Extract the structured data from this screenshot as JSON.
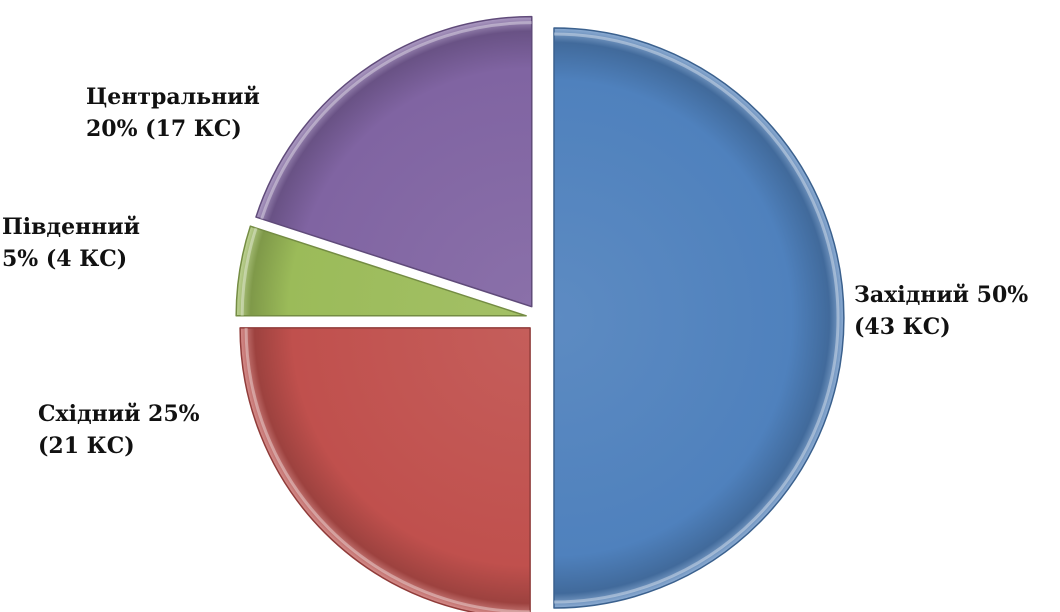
{
  "chart_data": {
    "type": "pie",
    "title": "",
    "slices": [
      {
        "name": "Західний",
        "percent": 50,
        "count": 43,
        "label_line1": "Західний 50%",
        "label_line2": "(43 КС)",
        "color": "#4f81bd"
      },
      {
        "name": "Східний",
        "percent": 25,
        "count": 21,
        "label_line1": "Східний 25%",
        "label_line2": "(21 КС)",
        "color": "#c0504d"
      },
      {
        "name": "Південний",
        "percent": 5,
        "count": 4,
        "label_line1": "Південний",
        "label_line2": "5% (4 КС)",
        "color": "#9bbb59"
      },
      {
        "name": "Центральний",
        "percent": 20,
        "count": 17,
        "label_line1": "Центральний",
        "label_line2": "20% (17 КС)",
        "color": "#8064a2"
      }
    ],
    "start_angle_deg": 0,
    "direction": "clockwise",
    "exploded": true,
    "legend": "none"
  }
}
